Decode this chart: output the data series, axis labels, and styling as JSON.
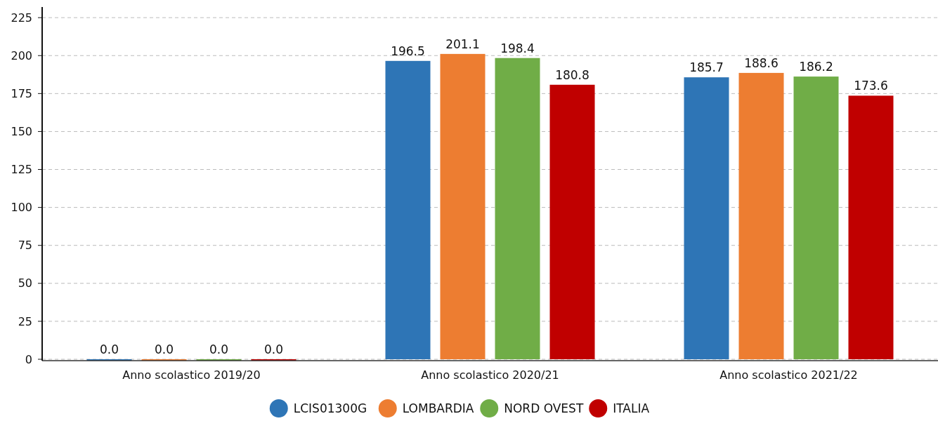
{
  "chart_data": {
    "type": "bar",
    "categories": [
      "Anno scolastico 2019/20",
      "Anno scolastico 2020/21",
      "Anno scolastico 2021/22"
    ],
    "series": [
      {
        "name": "LCIS01300G",
        "color": "#2e75b6",
        "values": [
          0,
          196.5,
          185.7
        ],
        "value_labels": [
          "0.0",
          "196.5",
          "185.7"
        ]
      },
      {
        "name": "LOMBARDIA",
        "color": "#ed7d31",
        "values": [
          0,
          201.1,
          188.6
        ],
        "value_labels": [
          "0.0",
          "201.1",
          "188.6"
        ]
      },
      {
        "name": "NORD OVEST",
        "color": "#70ad47",
        "values": [
          0,
          198.4,
          186.2
        ],
        "value_labels": [
          "0.0",
          "198.4",
          "186.2"
        ]
      },
      {
        "name": "ITALIA",
        "color": "#c00000",
        "values": [
          0,
          180.8,
          173.6
        ],
        "value_labels": [
          "0.0",
          "180.8",
          "173.6"
        ]
      }
    ],
    "ylim": [
      0,
      232
    ],
    "yticks": [
      0,
      25,
      50,
      75,
      100,
      125,
      150,
      175,
      200,
      225
    ],
    "grid": "y",
    "legend": "bottom",
    "marker": "circle"
  }
}
